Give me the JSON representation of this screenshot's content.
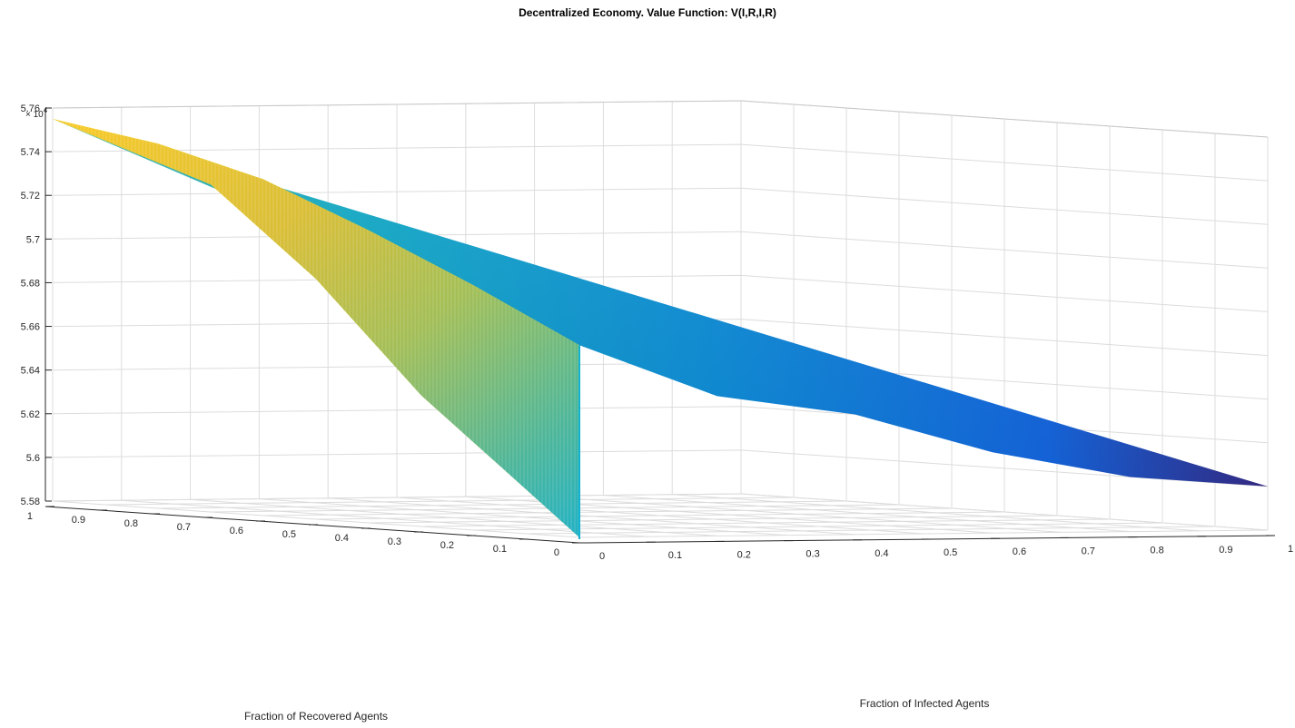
{
  "chart_data": {
    "type": "surface",
    "title": "Decentralized Economy. Value Function: V(I,R,I,R)",
    "xlabel": "Fraction of Infected Agents",
    "ylabel": "Fraction of Recovered Agents",
    "zlabel": "",
    "z_exponent_label": "× 10",
    "z_exponent": "4",
    "xlim": [
      0,
      1
    ],
    "ylim": [
      0,
      1
    ],
    "zlim": [
      5.58,
      5.76
    ],
    "xticks": [
      "0",
      "0.1",
      "0.2",
      "0.3",
      "0.4",
      "0.5",
      "0.6",
      "0.7",
      "0.8",
      "0.9",
      "1"
    ],
    "yticks": [
      "0",
      "0.1",
      "0.2",
      "0.3",
      "0.4",
      "0.5",
      "0.6",
      "0.7",
      "0.8",
      "0.9",
      "1"
    ],
    "zticks": [
      "5.58",
      "5.6",
      "5.62",
      "5.64",
      "5.66",
      "5.68",
      "5.7",
      "5.72",
      "5.74",
      "5.76"
    ],
    "colormap": "parula",
    "grid": true,
    "surface": {
      "domain": "I + R <= 1",
      "corner_values_x1e4": [
        {
          "I": 0,
          "R": 1,
          "V": 5.755
        },
        {
          "I": 0,
          "R": 0,
          "V": 5.668
        },
        {
          "I": 1,
          "R": 0,
          "V": 5.6
        }
      ],
      "edge_R0_profile": [
        {
          "I": 0.0,
          "V": 5.668
        },
        {
          "I": 0.2,
          "V": 5.644
        },
        {
          "I": 0.4,
          "V": 5.635
        },
        {
          "I": 0.6,
          "V": 5.617
        },
        {
          "I": 0.8,
          "V": 5.605
        },
        {
          "I": 1.0,
          "V": 5.6
        }
      ],
      "edge_I0_profile": [
        {
          "R": 0.0,
          "V": 5.668
        },
        {
          "R": 0.2,
          "V": 5.692
        },
        {
          "R": 0.4,
          "V": 5.714
        },
        {
          "R": 0.6,
          "V": 5.734
        },
        {
          "R": 0.8,
          "V": 5.747
        },
        {
          "R": 1.0,
          "V": 5.755
        }
      ],
      "front_face_floor_line": [
        {
          "I": 0.0,
          "R": 0.0,
          "V": 5.58
        },
        {
          "I": 0.15,
          "R": 0.15,
          "V": 5.61
        },
        {
          "I": 0.3,
          "R": 0.3,
          "V": 5.64
        },
        {
          "I": 0.5,
          "R": 0.5,
          "V": 5.69
        },
        {
          "I": 0.7,
          "R": 0.7,
          "V": 5.73
        },
        {
          "I": 1.0,
          "R": 1.0,
          "V": 5.755
        }
      ]
    }
  }
}
